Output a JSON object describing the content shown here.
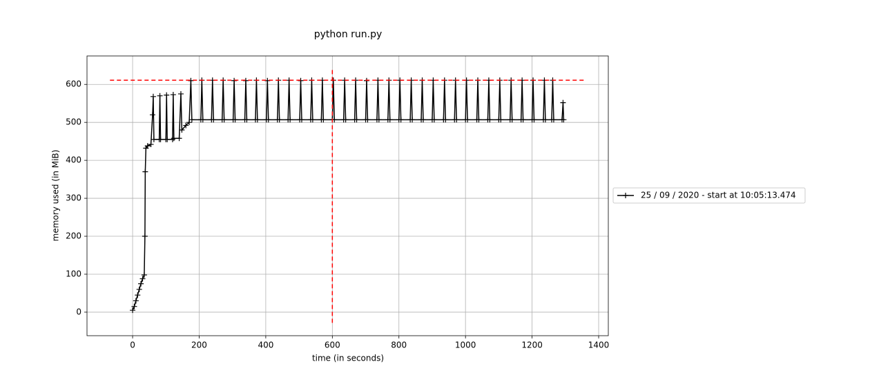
{
  "chart_data": {
    "type": "line",
    "title": "python run.py",
    "x_label": "time (in seconds)",
    "y_label": "memory used (in MiB)",
    "xlim": [
      -137,
      1429
    ],
    "ylim": [
      -62,
      675
    ],
    "xticks": [
      0,
      200,
      400,
      600,
      800,
      1000,
      1200,
      1400
    ],
    "yticks": [
      0,
      100,
      200,
      300,
      400,
      500,
      600
    ],
    "grid": true,
    "legend": "outside right",
    "hline": {
      "y": 611,
      "xmin": -68,
      "xmax": 1360,
      "color": "#ff0000"
    },
    "vline": {
      "x": 600,
      "ymin": -28,
      "ymax": 640,
      "color": "#ff0000"
    },
    "series": [
      {
        "name": "25 / 09 / 2020 - start at 10:05:13.474",
        "color": "#000000",
        "x": [
          0,
          5,
          10,
          15,
          20,
          25,
          30,
          35,
          37,
          38,
          40,
          45,
          55,
          60,
          62,
          64,
          80,
          82,
          84,
          100,
          102,
          104,
          120,
          122,
          124,
          140,
          145,
          148,
          160,
          170,
          175,
          178,
          205,
          208,
          211,
          237,
          240,
          243,
          269,
          272,
          275,
          302,
          305,
          308,
          337,
          340,
          343,
          369,
          372,
          375,
          402,
          405,
          408,
          435,
          438,
          441,
          467,
          470,
          473,
          502,
          505,
          508,
          535,
          538,
          541,
          567,
          570,
          573,
          600,
          603,
          606,
          634,
          637,
          640,
          667,
          670,
          673,
          700,
          703,
          706,
          734,
          737,
          740,
          767,
          770,
          773,
          800,
          803,
          806,
          834,
          837,
          840,
          867,
          870,
          873,
          900,
          903,
          906,
          934,
          937,
          940,
          967,
          970,
          973,
          1000,
          1003,
          1006,
          1034,
          1037,
          1040,
          1067,
          1070,
          1073,
          1100,
          1103,
          1106,
          1134,
          1137,
          1140,
          1167,
          1170,
          1173,
          1200,
          1203,
          1206,
          1234,
          1237,
          1240,
          1259,
          1262,
          1265,
          1290,
          1293,
          1295
        ],
        "values": [
          5,
          15,
          30,
          45,
          60,
          75,
          88,
          98,
          200,
          370,
          432,
          438,
          442,
          520,
          568,
          455,
          455,
          570,
          455,
          455,
          572,
          455,
          455,
          573,
          458,
          458,
          575,
          480,
          492,
          500,
          610,
          507,
          507,
          611,
          507,
          507,
          611,
          507,
          507,
          611,
          507,
          507,
          610,
          507,
          507,
          610,
          507,
          507,
          611,
          507,
          507,
          610,
          507,
          507,
          611,
          507,
          507,
          611,
          507,
          507,
          610,
          507,
          507,
          611,
          507,
          507,
          611,
          507,
          507,
          611,
          507,
          507,
          611,
          507,
          507,
          611,
          507,
          507,
          610,
          507,
          507,
          611,
          507,
          507,
          611,
          507,
          507,
          611,
          507,
          507,
          611,
          507,
          507,
          611,
          507,
          507,
          611,
          507,
          507,
          611,
          507,
          507,
          611,
          507,
          507,
          611,
          507,
          507,
          611,
          507,
          507,
          611,
          507,
          507,
          611,
          507,
          507,
          611,
          507,
          507,
          611,
          507,
          507,
          611,
          507,
          507,
          611,
          507,
          507,
          611,
          507,
          507,
          552,
          507
        ]
      }
    ]
  }
}
